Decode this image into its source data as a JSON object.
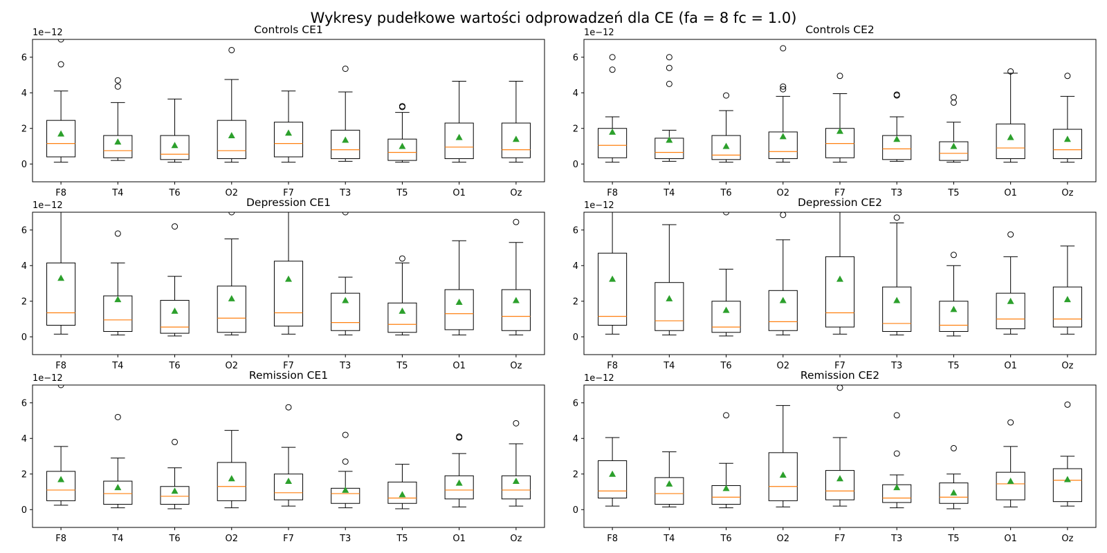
{
  "figure": {
    "suptitle": "Wykresy pudełkowe wartości odprowadzeń dla CE (fa = 8 fc = 1.0)"
  },
  "chart_data": [
    {
      "type": "box",
      "title": "Controls CE1",
      "offset_label": "1e−12",
      "categories": [
        "F8",
        "T4",
        "T6",
        "O2",
        "F7",
        "T3",
        "T5",
        "O1",
        "Oz"
      ],
      "ylim": [
        -1,
        7
      ],
      "yticks": [
        0,
        2,
        4,
        6
      ],
      "boxes": [
        {
          "whislo": 0.1,
          "q1": 0.4,
          "med": 1.15,
          "q3": 2.45,
          "whishi": 4.1,
          "mean": 1.7,
          "fliers": [
            5.6,
            7.0
          ]
        },
        {
          "whislo": 0.2,
          "q1": 0.35,
          "med": 0.75,
          "q3": 1.6,
          "whishi": 3.45,
          "mean": 1.25,
          "fliers": [
            4.35,
            4.7
          ]
        },
        {
          "whislo": 0.1,
          "q1": 0.25,
          "med": 0.55,
          "q3": 1.6,
          "whishi": 3.65,
          "mean": 1.05,
          "fliers": []
        },
        {
          "whislo": 0.1,
          "q1": 0.3,
          "med": 0.75,
          "q3": 2.45,
          "whishi": 4.75,
          "mean": 1.6,
          "fliers": [
            6.4
          ]
        },
        {
          "whislo": 0.1,
          "q1": 0.4,
          "med": 1.15,
          "q3": 2.35,
          "whishi": 4.1,
          "mean": 1.75,
          "fliers": []
        },
        {
          "whislo": 0.15,
          "q1": 0.3,
          "med": 0.8,
          "q3": 1.9,
          "whishi": 4.05,
          "mean": 1.35,
          "fliers": [
            5.35
          ]
        },
        {
          "whislo": 0.1,
          "q1": 0.2,
          "med": 0.65,
          "q3": 1.4,
          "whishi": 2.9,
          "mean": 1.0,
          "fliers": [
            3.2,
            3.25
          ]
        },
        {
          "whislo": 0.1,
          "q1": 0.3,
          "med": 0.95,
          "q3": 2.3,
          "whishi": 4.65,
          "mean": 1.5,
          "fliers": []
        },
        {
          "whislo": 0.1,
          "q1": 0.35,
          "med": 0.8,
          "q3": 2.3,
          "whishi": 4.65,
          "mean": 1.4,
          "fliers": []
        }
      ]
    },
    {
      "type": "box",
      "title": "Controls CE2",
      "offset_label": "1e−12",
      "categories": [
        "F8",
        "T4",
        "T6",
        "O2",
        "F7",
        "T3",
        "T5",
        "O1",
        "Oz"
      ],
      "ylim": [
        -1,
        7
      ],
      "yticks": [
        0,
        2,
        4,
        6
      ],
      "boxes": [
        {
          "whislo": 0.1,
          "q1": 0.35,
          "med": 1.05,
          "q3": 2.0,
          "whishi": 2.65,
          "mean": 1.8,
          "fliers": [
            5.3,
            6.0
          ]
        },
        {
          "whislo": 0.15,
          "q1": 0.3,
          "med": 0.65,
          "q3": 1.45,
          "whishi": 1.9,
          "mean": 1.35,
          "fliers": [
            4.5,
            5.4,
            6.0
          ]
        },
        {
          "whislo": 0.1,
          "q1": 0.25,
          "med": 0.5,
          "q3": 1.6,
          "whishi": 3.0,
          "mean": 1.0,
          "fliers": [
            3.85
          ]
        },
        {
          "whislo": 0.1,
          "q1": 0.3,
          "med": 0.7,
          "q3": 1.8,
          "whishi": 3.8,
          "mean": 1.55,
          "fliers": [
            4.2,
            4.35,
            6.5
          ]
        },
        {
          "whislo": 0.1,
          "q1": 0.35,
          "med": 1.15,
          "q3": 2.0,
          "whishi": 3.95,
          "mean": 1.85,
          "fliers": [
            4.95
          ]
        },
        {
          "whislo": 0.15,
          "q1": 0.25,
          "med": 0.85,
          "q3": 1.6,
          "whishi": 2.65,
          "mean": 1.4,
          "fliers": [
            3.85,
            3.9
          ]
        },
        {
          "whislo": 0.1,
          "q1": 0.2,
          "med": 0.6,
          "q3": 1.25,
          "whishi": 2.35,
          "mean": 1.0,
          "fliers": [
            3.45,
            3.75
          ]
        },
        {
          "whislo": 0.1,
          "q1": 0.3,
          "med": 0.9,
          "q3": 2.25,
          "whishi": 5.1,
          "mean": 1.5,
          "fliers": [
            5.2
          ]
        },
        {
          "whislo": 0.1,
          "q1": 0.3,
          "med": 0.8,
          "q3": 1.95,
          "whishi": 3.8,
          "mean": 1.4,
          "fliers": [
            4.95
          ]
        }
      ]
    },
    {
      "type": "box",
      "title": "Depression CE1",
      "offset_label": "1e−12",
      "categories": [
        "F8",
        "T4",
        "T6",
        "O2",
        "F7",
        "T3",
        "T5",
        "O1",
        "Oz"
      ],
      "ylim": [
        -1,
        7
      ],
      "yticks": [
        0,
        2,
        4,
        6
      ],
      "boxes": [
        {
          "whislo": 0.15,
          "q1": 0.65,
          "med": 1.35,
          "q3": 4.15,
          "whishi": 7.2,
          "mean": 3.3,
          "fliers": []
        },
        {
          "whislo": 0.1,
          "q1": 0.3,
          "med": 0.95,
          "q3": 2.3,
          "whishi": 4.15,
          "mean": 2.1,
          "fliers": [
            5.8
          ]
        },
        {
          "whislo": 0.05,
          "q1": 0.2,
          "med": 0.55,
          "q3": 2.05,
          "whishi": 3.4,
          "mean": 1.45,
          "fliers": [
            6.2
          ]
        },
        {
          "whislo": 0.1,
          "q1": 0.25,
          "med": 1.05,
          "q3": 2.85,
          "whishi": 5.5,
          "mean": 2.15,
          "fliers": [
            7.0
          ]
        },
        {
          "whislo": 0.15,
          "q1": 0.6,
          "med": 1.35,
          "q3": 4.25,
          "whishi": 7.2,
          "mean": 3.25,
          "fliers": []
        },
        {
          "whislo": 0.1,
          "q1": 0.35,
          "med": 0.8,
          "q3": 2.45,
          "whishi": 3.35,
          "mean": 2.05,
          "fliers": [
            7.0
          ]
        },
        {
          "whislo": 0.1,
          "q1": 0.25,
          "med": 0.7,
          "q3": 1.9,
          "whishi": 4.15,
          "mean": 1.45,
          "fliers": [
            4.4
          ]
        },
        {
          "whislo": 0.1,
          "q1": 0.4,
          "med": 1.3,
          "q3": 2.65,
          "whishi": 5.4,
          "mean": 1.95,
          "fliers": []
        },
        {
          "whislo": 0.1,
          "q1": 0.35,
          "med": 1.15,
          "q3": 2.65,
          "whishi": 5.3,
          "mean": 2.05,
          "fliers": [
            6.45
          ]
        }
      ]
    },
    {
      "type": "box",
      "title": "Depression CE2",
      "offset_label": "1e−12",
      "categories": [
        "F8",
        "T4",
        "T6",
        "O2",
        "F7",
        "T3",
        "T5",
        "O1",
        "Oz"
      ],
      "ylim": [
        -1,
        7
      ],
      "yticks": [
        0,
        2,
        4,
        6
      ],
      "boxes": [
        {
          "whislo": 0.15,
          "q1": 0.65,
          "med": 1.15,
          "q3": 4.7,
          "whishi": 7.2,
          "mean": 3.25,
          "fliers": []
        },
        {
          "whislo": 0.1,
          "q1": 0.35,
          "med": 0.9,
          "q3": 3.05,
          "whishi": 6.3,
          "mean": 2.15,
          "fliers": []
        },
        {
          "whislo": 0.05,
          "q1": 0.25,
          "med": 0.55,
          "q3": 2.0,
          "whishi": 3.8,
          "mean": 1.5,
          "fliers": [
            7.0
          ]
        },
        {
          "whislo": 0.1,
          "q1": 0.35,
          "med": 0.85,
          "q3": 2.6,
          "whishi": 5.45,
          "mean": 2.05,
          "fliers": [
            6.85
          ]
        },
        {
          "whislo": 0.15,
          "q1": 0.55,
          "med": 1.35,
          "q3": 4.5,
          "whishi": 7.2,
          "mean": 3.25,
          "fliers": []
        },
        {
          "whislo": 0.1,
          "q1": 0.3,
          "med": 0.75,
          "q3": 2.8,
          "whishi": 6.4,
          "mean": 2.05,
          "fliers": [
            6.7
          ]
        },
        {
          "whislo": 0.05,
          "q1": 0.3,
          "med": 0.65,
          "q3": 2.0,
          "whishi": 4.0,
          "mean": 1.55,
          "fliers": [
            4.6
          ]
        },
        {
          "whislo": 0.15,
          "q1": 0.45,
          "med": 1.0,
          "q3": 2.45,
          "whishi": 4.5,
          "mean": 2.0,
          "fliers": [
            5.75
          ]
        },
        {
          "whislo": 0.15,
          "q1": 0.55,
          "med": 1.0,
          "q3": 2.8,
          "whishi": 5.1,
          "mean": 2.1,
          "fliers": []
        }
      ]
    },
    {
      "type": "box",
      "title": "Remission CE1",
      "offset_label": "1e−12",
      "categories": [
        "F8",
        "T4",
        "T6",
        "O2",
        "F7",
        "T3",
        "T5",
        "O1",
        "Oz"
      ],
      "ylim": [
        -1,
        7
      ],
      "yticks": [
        0,
        2,
        4,
        6
      ],
      "boxes": [
        {
          "whislo": 0.25,
          "q1": 0.5,
          "med": 1.1,
          "q3": 2.15,
          "whishi": 3.55,
          "mean": 1.7,
          "fliers": [
            7.0
          ]
        },
        {
          "whislo": 0.1,
          "q1": 0.3,
          "med": 0.9,
          "q3": 1.6,
          "whishi": 2.9,
          "mean": 1.25,
          "fliers": [
            5.2
          ]
        },
        {
          "whislo": 0.05,
          "q1": 0.3,
          "med": 0.75,
          "q3": 1.3,
          "whishi": 2.35,
          "mean": 1.05,
          "fliers": [
            3.8
          ]
        },
        {
          "whislo": 0.1,
          "q1": 0.5,
          "med": 1.3,
          "q3": 2.65,
          "whishi": 4.45,
          "mean": 1.75,
          "fliers": []
        },
        {
          "whislo": 0.2,
          "q1": 0.55,
          "med": 0.95,
          "q3": 2.0,
          "whishi": 3.5,
          "mean": 1.6,
          "fliers": [
            5.75
          ]
        },
        {
          "whislo": 0.1,
          "q1": 0.35,
          "med": 0.9,
          "q3": 1.2,
          "whishi": 2.15,
          "mean": 1.1,
          "fliers": [
            2.7,
            4.2
          ]
        },
        {
          "whislo": 0.05,
          "q1": 0.35,
          "med": 0.65,
          "q3": 1.55,
          "whishi": 2.55,
          "mean": 0.85,
          "fliers": []
        },
        {
          "whislo": 0.15,
          "q1": 0.6,
          "med": 1.1,
          "q3": 1.9,
          "whishi": 3.15,
          "mean": 1.5,
          "fliers": [
            4.05,
            4.1
          ]
        },
        {
          "whislo": 0.2,
          "q1": 0.6,
          "med": 1.1,
          "q3": 1.9,
          "whishi": 3.7,
          "mean": 1.6,
          "fliers": [
            4.85
          ]
        }
      ]
    },
    {
      "type": "box",
      "title": "Remission CE2",
      "offset_label": "1e−12",
      "categories": [
        "F8",
        "T4",
        "T6",
        "O2",
        "F7",
        "T3",
        "T5",
        "O1",
        "Oz"
      ],
      "ylim": [
        -1,
        7
      ],
      "yticks": [
        0,
        2,
        4,
        6
      ],
      "boxes": [
        {
          "whislo": 0.2,
          "q1": 0.65,
          "med": 1.05,
          "q3": 2.75,
          "whishi": 4.05,
          "mean": 2.0,
          "fliers": []
        },
        {
          "whislo": 0.15,
          "q1": 0.3,
          "med": 0.9,
          "q3": 1.8,
          "whishi": 3.25,
          "mean": 1.45,
          "fliers": []
        },
        {
          "whislo": 0.1,
          "q1": 0.3,
          "med": 0.7,
          "q3": 1.35,
          "whishi": 2.6,
          "mean": 1.2,
          "fliers": [
            5.3
          ]
        },
        {
          "whislo": 0.15,
          "q1": 0.5,
          "med": 1.3,
          "q3": 3.2,
          "whishi": 5.85,
          "mean": 1.95,
          "fliers": []
        },
        {
          "whislo": 0.2,
          "q1": 0.55,
          "med": 1.05,
          "q3": 2.2,
          "whishi": 4.05,
          "mean": 1.75,
          "fliers": [
            6.85
          ]
        },
        {
          "whislo": 0.1,
          "q1": 0.4,
          "med": 0.65,
          "q3": 1.4,
          "whishi": 1.95,
          "mean": 1.25,
          "fliers": [
            3.15,
            5.3
          ]
        },
        {
          "whislo": 0.05,
          "q1": 0.35,
          "med": 0.7,
          "q3": 1.5,
          "whishi": 2.0,
          "mean": 0.95,
          "fliers": [
            3.45
          ]
        },
        {
          "whislo": 0.15,
          "q1": 0.55,
          "med": 1.45,
          "q3": 2.1,
          "whishi": 3.55,
          "mean": 1.6,
          "fliers": [
            4.9
          ]
        },
        {
          "whislo": 0.2,
          "q1": 0.45,
          "med": 1.65,
          "q3": 2.3,
          "whishi": 3.0,
          "mean": 1.7,
          "fliers": [
            5.9
          ]
        }
      ]
    }
  ],
  "colors": {
    "box": "#000000",
    "median": "#ff7f0e",
    "mean": "#2ca02c",
    "flier": "#000000"
  }
}
